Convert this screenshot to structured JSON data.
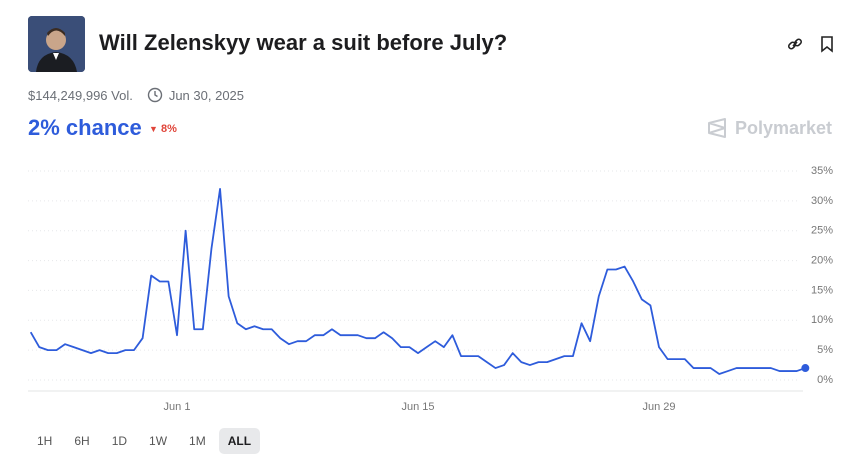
{
  "header": {
    "title": "Will Zelenskyy wear a suit before July?",
    "volume": "$144,249,996 Vol.",
    "end_date": "Jun 30, 2025",
    "chance": "2% chance",
    "change": "8%",
    "brand": "Polymarket"
  },
  "ranges": {
    "options": [
      "1H",
      "6H",
      "1D",
      "1W",
      "1M",
      "ALL"
    ],
    "selected": "ALL"
  },
  "chart_data": {
    "type": "line",
    "color": "#2e5cdb",
    "categories": [
      null,
      null,
      null,
      null,
      null,
      null,
      null,
      null,
      null,
      null,
      null,
      null,
      null,
      null,
      null,
      null,
      null,
      "Jun 1",
      null,
      null,
      null,
      null,
      null,
      null,
      null,
      null,
      null,
      null,
      null,
      null,
      null,
      null,
      null,
      null,
      null,
      null,
      null,
      null,
      null,
      null,
      null,
      null,
      null,
      null,
      null,
      "Jun 15",
      null,
      null,
      null,
      null,
      null,
      null,
      null,
      null,
      null,
      null,
      null,
      null,
      null,
      null,
      null,
      null,
      null,
      null,
      null,
      null,
      null,
      null,
      null,
      null,
      null,
      null,
      null,
      "Jun 29",
      null,
      null,
      null,
      null,
      null,
      null,
      null,
      null,
      null,
      null,
      null,
      null,
      null,
      null,
      null,
      null,
      null
    ],
    "values": [
      8,
      5.5,
      5,
      5,
      6,
      5.5,
      5,
      4.5,
      5,
      4.5,
      4.5,
      5,
      5,
      7,
      17.5,
      16.5,
      16.5,
      7.5,
      25,
      8.5,
      8.5,
      22,
      32,
      14,
      9.5,
      8.5,
      9,
      8.5,
      8.5,
      7,
      6,
      6.5,
      6.5,
      7.5,
      7.5,
      8.5,
      7.5,
      7.5,
      7.5,
      7,
      7,
      8,
      7,
      5.5,
      5.5,
      4.5,
      5.5,
      6.5,
      5.5,
      7.5,
      4,
      4,
      4,
      3,
      2,
      2.5,
      4.5,
      3,
      2.5,
      3,
      3,
      3.5,
      4,
      4,
      9.5,
      6.5,
      14,
      18.5,
      18.5,
      19,
      16.5,
      13.5,
      12.5,
      5.5,
      3.5,
      3.5,
      3.5,
      2,
      2,
      2,
      1,
      1.5,
      2,
      2,
      2,
      2,
      2,
      1.5,
      1.5,
      1.5,
      2
    ],
    "ylim": [
      0,
      35
    ],
    "yticks": [
      {
        "value": 0,
        "label": "0%"
      },
      {
        "value": 5,
        "label": "5%"
      },
      {
        "value": 10,
        "label": "10%"
      },
      {
        "value": 15,
        "label": "15%"
      },
      {
        "value": 20,
        "label": "20%"
      },
      {
        "value": 25,
        "label": "25%"
      },
      {
        "value": 30,
        "label": "30%"
      },
      {
        "value": 35,
        "label": "35%"
      }
    ],
    "grid": true
  }
}
